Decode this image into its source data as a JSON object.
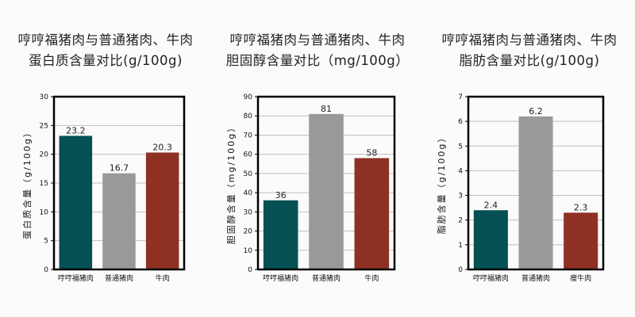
{
  "chart_data": [
    {
      "type": "bar",
      "title": "哼哼福猪肉与普通猪肉、牛肉\n蛋白质含量对比(g/100g)",
      "ylabel": "蛋白质含量（g/100g）",
      "xlabel": "",
      "categories": [
        "哼哼福猪肉",
        "普通猪肉",
        "牛肉"
      ],
      "values": [
        23.2,
        16.7,
        20.3
      ],
      "value_labels": [
        "23.2",
        "16.7",
        "20.3"
      ],
      "colors": [
        "#045052",
        "#999999",
        "#8e3024"
      ],
      "ylim": [
        0,
        30
      ],
      "yticks": [
        0,
        5,
        10,
        15,
        20,
        25,
        30
      ],
      "grid": true
    },
    {
      "type": "bar",
      "title": "哼哼福猪肉与普通猪肉、牛肉\n胆固醇含量对比（mg/100g）",
      "ylabel": "胆固醇含量（mg/100g）",
      "xlabel": "",
      "categories": [
        "哼哼福猪肉",
        "普通猪肉",
        "牛肉"
      ],
      "values": [
        36,
        81,
        58
      ],
      "value_labels": [
        "36",
        "81",
        "58"
      ],
      "colors": [
        "#045052",
        "#999999",
        "#8e3024"
      ],
      "ylim": [
        0,
        90
      ],
      "yticks": [
        0,
        10,
        20,
        30,
        40,
        50,
        60,
        70,
        80,
        90
      ],
      "grid": true
    },
    {
      "type": "bar",
      "title": "哼哼福猪肉与普通猪肉、牛肉\n脂肪含量对比(g/100g)",
      "ylabel": "脂肪含量（g/100g）",
      "xlabel": "",
      "categories": [
        "哼哼福猪肉",
        "普通猪肉",
        "瘦牛肉"
      ],
      "values": [
        2.4,
        6.2,
        2.3
      ],
      "value_labels": [
        "2.4",
        "6.2",
        "2.3"
      ],
      "colors": [
        "#045052",
        "#999999",
        "#8e3024"
      ],
      "ylim": [
        0,
        7
      ],
      "yticks": [
        0,
        1,
        2,
        3,
        4,
        5,
        6,
        7
      ],
      "grid": true
    }
  ]
}
